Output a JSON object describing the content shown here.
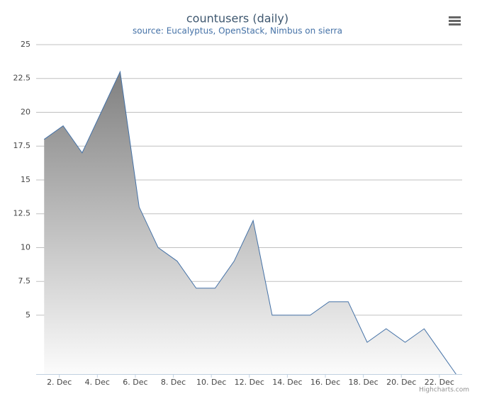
{
  "chart_data": {
    "type": "area",
    "title": "countusers (daily)",
    "subtitle": "source: Eucalyptus, OpenStack, Nimbus on sierra",
    "credit": "Highcharts.com",
    "x": [
      1.2,
      2.2,
      3.2,
      4.2,
      5.2,
      6.2,
      7.2,
      8.2,
      9.2,
      10.2,
      11.2,
      12.2,
      13.2,
      14.2,
      15.2,
      16.2,
      17.2,
      18.2,
      19.2,
      20.2,
      21.2,
      22.2,
      23.2
    ],
    "series": [
      {
        "name": "countusers",
        "color": "#4572a7",
        "values": [
          18,
          19,
          17,
          20,
          23,
          13,
          10,
          9,
          7,
          7,
          9,
          12,
          5,
          5,
          5,
          6,
          6,
          3,
          4,
          3,
          4,
          2,
          0
        ]
      }
    ],
    "xlim": [
      0.78,
      23.2
    ],
    "xticks": [
      {
        "value": 2,
        "label": "2. Dec"
      },
      {
        "value": 4,
        "label": "4. Dec"
      },
      {
        "value": 6,
        "label": "6. Dec"
      },
      {
        "value": 8,
        "label": "8. Dec"
      },
      {
        "value": 10,
        "label": "10. Dec"
      },
      {
        "value": 12,
        "label": "12. Dec"
      },
      {
        "value": 14,
        "label": "14. Dec"
      },
      {
        "value": 16,
        "label": "16. Dec"
      },
      {
        "value": 18,
        "label": "18. Dec"
      },
      {
        "value": 20,
        "label": "20. Dec"
      },
      {
        "value": 22,
        "label": "22. Dec"
      }
    ],
    "ylim": [
      0.65,
      25
    ],
    "yticks": [
      5,
      7.5,
      10,
      12.5,
      15,
      17.5,
      20,
      22.5,
      25
    ],
    "grid": true
  }
}
